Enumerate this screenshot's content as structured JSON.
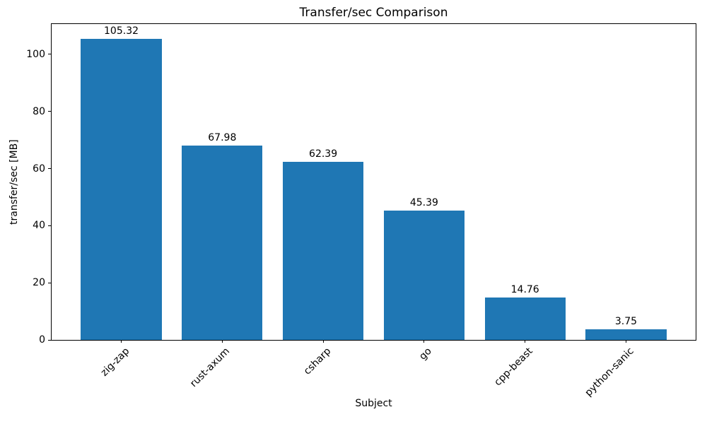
{
  "chart_data": {
    "type": "bar",
    "title": "Transfer/sec Comparison",
    "xlabel": "Subject",
    "ylabel": "transfer/sec [MB]",
    "categories": [
      "zig-zap",
      "rust-axum",
      "csharp",
      "go",
      "cpp-beast",
      "python-sanic"
    ],
    "values": [
      105.32,
      67.98,
      62.39,
      45.39,
      14.76,
      3.75
    ],
    "value_labels": [
      "105.32",
      "67.98",
      "62.39",
      "45.39",
      "14.76",
      "3.75"
    ],
    "yticks": [
      0,
      20,
      40,
      60,
      80,
      100
    ],
    "ytick_labels": [
      "0",
      "20",
      "40",
      "60",
      "80",
      "100"
    ],
    "ylim": [
      0,
      110.6
    ],
    "xlim": [
      -0.69,
      5.69
    ],
    "bar_width_units": 0.8,
    "bar_color": "#1f77b4",
    "xtick_rotation": 45,
    "grid": false,
    "legend": null
  }
}
